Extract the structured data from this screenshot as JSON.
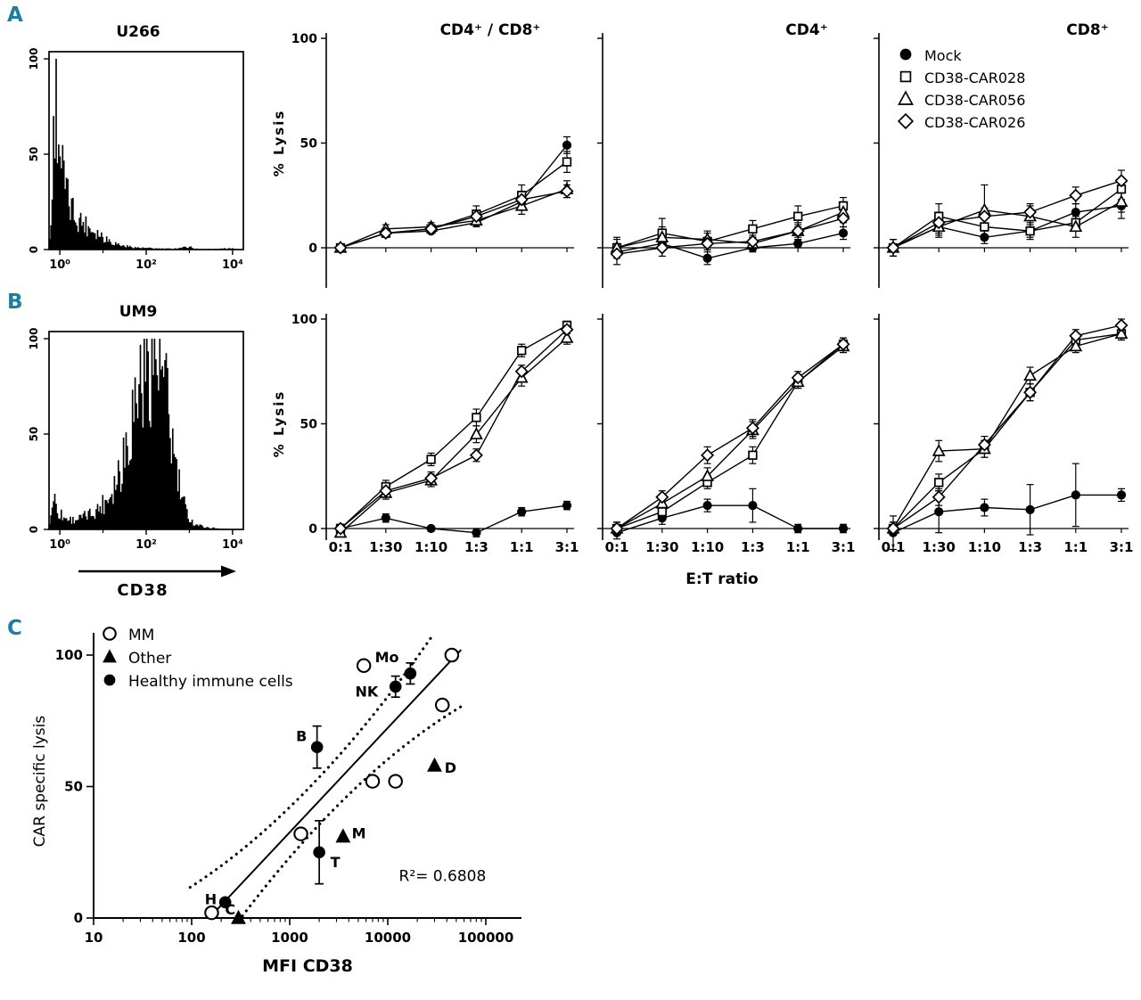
{
  "panels": {
    "a": "A",
    "b": "B",
    "c": "C"
  },
  "labels": {
    "et_ratio": "E:T ratio",
    "cd38": "CD38"
  },
  "legendA": {
    "items": [
      {
        "marker": "circle-filled",
        "label": "Mock"
      },
      {
        "marker": "square-open",
        "label": "CD38-CAR028"
      },
      {
        "marker": "triangle-open",
        "label": "CD38-CAR056"
      },
      {
        "marker": "diamond-open",
        "label": "CD38-CAR026"
      }
    ]
  },
  "legendC": {
    "items": [
      {
        "marker": "circle-open",
        "label": "MM"
      },
      {
        "marker": "triangle-filled",
        "label": "Other"
      },
      {
        "marker": "circle-filled",
        "label": "Healthy immune  cells"
      }
    ]
  },
  "chart_data": [
    {
      "id": "hist-u266",
      "type": "histogram",
      "title": "U266",
      "yticks": [
        0,
        50,
        100
      ],
      "log_range": [
        -0.25,
        4.25
      ],
      "xticks": [
        {
          "log": 0,
          "label": "10⁰"
        },
        {
          "log": 2,
          "label": "10²"
        },
        {
          "log": 4,
          "label": "10⁴"
        }
      ],
      "profile": [
        [
          -0.25,
          0
        ],
        [
          -0.18,
          25
        ],
        [
          -0.1,
          95
        ],
        [
          -0.02,
          60
        ],
        [
          0.08,
          38
        ],
        [
          0.2,
          24
        ],
        [
          0.35,
          18
        ],
        [
          0.5,
          15
        ],
        [
          0.65,
          12
        ],
        [
          0.8,
          10
        ],
        [
          1.0,
          7
        ],
        [
          1.2,
          4
        ],
        [
          1.45,
          2
        ],
        [
          1.8,
          1
        ],
        [
          2.2,
          0.6
        ],
        [
          2.6,
          0.4
        ],
        [
          3.0,
          1.5
        ],
        [
          3.15,
          0.4
        ],
        [
          3.6,
          0.3
        ],
        [
          4.0,
          0.8
        ],
        [
          4.25,
          0
        ]
      ]
    },
    {
      "id": "lysis-a-cd4cd8",
      "type": "line",
      "title": "CD4⁺ / CD8⁺",
      "ylabel": "% Lysis",
      "yticks": [
        0,
        50,
        100
      ],
      "ylim": [
        -15,
        100
      ],
      "show_ytick_labels": true,
      "show_xtick_labels": false,
      "categories": [
        "0:1",
        "1:30",
        "1:10",
        "1:3",
        "1:1",
        "3:1"
      ],
      "series": [
        {
          "name": "Mock",
          "marker": "circle-filled",
          "values": [
            0,
            7,
            8,
            12,
            22,
            49
          ],
          "errors": [
            0,
            0,
            0,
            0,
            0,
            4
          ]
        },
        {
          "name": "CD38-CAR028",
          "marker": "square-open",
          "values": [
            0,
            7,
            9,
            16,
            25,
            41
          ],
          "errors": [
            0,
            2,
            2,
            4,
            5,
            5
          ]
        },
        {
          "name": "CD38-CAR056",
          "marker": "triangle-open",
          "values": [
            0,
            9,
            10,
            13,
            20,
            28
          ],
          "errors": [
            0,
            2,
            2,
            3,
            4,
            4
          ]
        },
        {
          "name": "CD38-CAR026",
          "marker": "diamond-open",
          "values": [
            0,
            7,
            9,
            15,
            23,
            27
          ],
          "errors": [
            0,
            0,
            2,
            3,
            4,
            3
          ]
        }
      ]
    },
    {
      "id": "lysis-a-cd4",
      "type": "line",
      "title": "CD4⁺",
      "ylabel": "",
      "yticks": [
        0,
        50,
        100
      ],
      "ylim": [
        -15,
        100
      ],
      "show_ytick_labels": false,
      "show_xtick_labels": false,
      "categories": [
        "0:1",
        "1:30",
        "1:10",
        "1:3",
        "1:1",
        "3:1"
      ],
      "series": [
        {
          "name": "Mock",
          "marker": "circle-filled",
          "values": [
            -2,
            2,
            -5,
            0,
            2,
            7
          ],
          "errors": [
            0,
            3,
            3,
            2,
            2,
            3
          ]
        },
        {
          "name": "CD38-CAR028",
          "marker": "square-open",
          "values": [
            0,
            7,
            3,
            9,
            15,
            20
          ],
          "errors": [
            5,
            7,
            4,
            4,
            5,
            4
          ]
        },
        {
          "name": "CD38-CAR056",
          "marker": "triangle-open",
          "values": [
            0,
            5,
            4,
            2,
            8,
            17
          ],
          "errors": [
            4,
            5,
            4,
            3,
            4,
            5
          ]
        },
        {
          "name": "CD38-CAR026",
          "marker": "diamond-open",
          "values": [
            -3,
            0,
            2,
            3,
            8,
            14
          ],
          "errors": [
            5,
            4,
            3,
            3,
            3,
            4
          ]
        }
      ]
    },
    {
      "id": "lysis-a-cd8",
      "type": "line",
      "title": "CD8⁺",
      "ylabel": "",
      "yticks": [
        0,
        50,
        100
      ],
      "ylim": [
        -15,
        100
      ],
      "show_ytick_labels": false,
      "show_xtick_labels": false,
      "categories": [
        "0:1",
        "1:30",
        "1:10",
        "1:3",
        "1:1",
        "3:1"
      ],
      "series": [
        {
          "name": "Mock",
          "marker": "circle-filled",
          "values": [
            0,
            10,
            5,
            8,
            17,
            20
          ],
          "errors": [
            0,
            4,
            3,
            3,
            4,
            3
          ]
        },
        {
          "name": "CD38-CAR028",
          "marker": "square-open",
          "values": [
            0,
            15,
            10,
            8,
            12,
            28
          ],
          "errors": [
            4,
            6,
            5,
            4,
            4,
            5
          ]
        },
        {
          "name": "CD38-CAR056",
          "marker": "triangle-open",
          "values": [
            0,
            10,
            18,
            15,
            10,
            22
          ],
          "errors": [
            4,
            5,
            12,
            5,
            5,
            8
          ]
        },
        {
          "name": "CD38-CAR026",
          "marker": "diamond-open",
          "values": [
            0,
            12,
            15,
            17,
            25,
            32
          ],
          "errors": [
            4,
            5,
            4,
            4,
            4,
            5
          ]
        }
      ]
    },
    {
      "id": "hist-um9",
      "type": "histogram",
      "title": "UM9",
      "yticks": [
        0,
        50,
        100
      ],
      "log_range": [
        -0.25,
        4.25
      ],
      "xticks": [
        {
          "log": 0,
          "label": "10⁰"
        },
        {
          "log": 2,
          "label": "10²"
        },
        {
          "log": 4,
          "label": "10⁴"
        }
      ],
      "profile": [
        [
          -0.25,
          0
        ],
        [
          -0.15,
          18
        ],
        [
          -0.05,
          10
        ],
        [
          0.1,
          6
        ],
        [
          0.3,
          5
        ],
        [
          0.5,
          6
        ],
        [
          0.7,
          8
        ],
        [
          0.9,
          11
        ],
        [
          1.1,
          16
        ],
        [
          1.3,
          26
        ],
        [
          1.5,
          42
        ],
        [
          1.7,
          62
        ],
        [
          1.85,
          78
        ],
        [
          2.0,
          92
        ],
        [
          2.1,
          97
        ],
        [
          2.2,
          93
        ],
        [
          2.35,
          82
        ],
        [
          2.5,
          62
        ],
        [
          2.65,
          38
        ],
        [
          2.8,
          18
        ],
        [
          2.95,
          8
        ],
        [
          3.1,
          3
        ],
        [
          3.4,
          1
        ],
        [
          3.8,
          0.4
        ],
        [
          4.25,
          0
        ]
      ]
    },
    {
      "id": "lysis-b-cd4cd8",
      "type": "line",
      "title": "CD4⁺ / CD8⁺",
      "ylabel": "% Lysis",
      "yticks": [
        0,
        50,
        100
      ],
      "ylim": [
        -15,
        100
      ],
      "show_ytick_labels": true,
      "show_xtick_labels": true,
      "categories": [
        "0:1",
        "1:30",
        "1:10",
        "1:3",
        "1:1",
        "3:1"
      ],
      "series": [
        {
          "name": "Mock",
          "marker": "circle-filled",
          "values": [
            0,
            5,
            0,
            -2,
            8,
            11
          ],
          "errors": [
            0,
            2,
            0,
            2,
            2,
            2
          ]
        },
        {
          "name": "CD38-CAR028",
          "marker": "square-open",
          "values": [
            0,
            20,
            33,
            53,
            85,
            97
          ],
          "errors": [
            2,
            3,
            3,
            4,
            3,
            2
          ]
        },
        {
          "name": "CD38-CAR056",
          "marker": "triangle-open",
          "values": [
            -2,
            17,
            23,
            45,
            72,
            91
          ],
          "errors": [
            2,
            3,
            3,
            4,
            4,
            3
          ]
        },
        {
          "name": "CD38-CAR026",
          "marker": "diamond-open",
          "values": [
            0,
            18,
            24,
            35,
            75,
            95
          ],
          "errors": [
            2,
            3,
            3,
            3,
            3,
            2
          ]
        }
      ]
    },
    {
      "id": "lysis-b-cd4",
      "type": "line",
      "title": "CD4⁺",
      "ylabel": "",
      "yticks": [
        0,
        50,
        100
      ],
      "ylim": [
        -15,
        100
      ],
      "show_ytick_labels": false,
      "show_xtick_labels": true,
      "categories": [
        "0:1",
        "1:30",
        "1:10",
        "1:3",
        "1:1",
        "3:1"
      ],
      "series": [
        {
          "name": "Mock",
          "marker": "circle-filled",
          "values": [
            -2,
            5,
            11,
            11,
            0,
            0
          ],
          "errors": [
            3,
            3,
            3,
            8,
            2,
            2
          ]
        },
        {
          "name": "CD38-CAR028",
          "marker": "square-open",
          "values": [
            0,
            8,
            22,
            35,
            70,
            88
          ],
          "errors": [
            3,
            3,
            3,
            4,
            3,
            3
          ]
        },
        {
          "name": "CD38-CAR056",
          "marker": "triangle-open",
          "values": [
            0,
            12,
            25,
            47,
            70,
            87
          ],
          "errors": [
            3,
            3,
            4,
            4,
            3,
            3
          ]
        },
        {
          "name": "CD38-CAR026",
          "marker": "diamond-open",
          "values": [
            0,
            15,
            35,
            48,
            72,
            88
          ],
          "errors": [
            3,
            3,
            4,
            4,
            3,
            3
          ]
        }
      ]
    },
    {
      "id": "lysis-b-cd8",
      "type": "line",
      "title": "CD8⁺",
      "ylabel": "",
      "yticks": [
        0,
        50,
        100
      ],
      "ylim": [
        -15,
        100
      ],
      "show_ytick_labels": false,
      "show_xtick_labels": true,
      "categories": [
        "0:1",
        "1:30",
        "1:10",
        "1:3",
        "1:1",
        "3:1"
      ],
      "series": [
        {
          "name": "Mock",
          "marker": "circle-filled",
          "values": [
            -2,
            8,
            10,
            9,
            16,
            16
          ],
          "errors": [
            8,
            10,
            4,
            12,
            15,
            3
          ]
        },
        {
          "name": "CD38-CAR028",
          "marker": "square-open",
          "values": [
            0,
            22,
            38,
            65,
            90,
            93
          ],
          "errors": [
            3,
            4,
            4,
            4,
            3,
            3
          ]
        },
        {
          "name": "CD38-CAR056",
          "marker": "triangle-open",
          "values": [
            0,
            37,
            38,
            73,
            87,
            93
          ],
          "errors": [
            3,
            5,
            4,
            4,
            3,
            3
          ]
        },
        {
          "name": "CD38-CAR026",
          "marker": "diamond-open",
          "values": [
            0,
            15,
            40,
            65,
            92,
            97
          ],
          "errors": [
            3,
            4,
            4,
            4,
            3,
            3
          ]
        }
      ]
    },
    {
      "id": "scatter-c",
      "type": "scatter",
      "xlabel": "MFI CD38",
      "ylabel": "CAR specific lysis",
      "yticks": [
        0,
        50,
        100
      ],
      "ylim": [
        0,
        110
      ],
      "xlog_range": [
        10,
        100000
      ],
      "xticks": [
        {
          "log": 1,
          "label": "10"
        },
        {
          "log": 2,
          "label": "100"
        },
        {
          "log": 3,
          "label": "1000"
        },
        {
          "log": 4,
          "label": "10000"
        },
        {
          "log": 5,
          "label": "100000"
        }
      ],
      "series": [
        {
          "name": "MM",
          "marker": "circle-open",
          "points": [
            {
              "x": 160,
              "y": 2
            },
            {
              "x": 1300,
              "y": 32
            },
            {
              "x": 7000,
              "y": 52
            },
            {
              "x": 12000,
              "y": 52
            },
            {
              "x": 5700,
              "y": 96
            },
            {
              "x": 45000,
              "y": 100
            },
            {
              "x": 36000,
              "y": 81
            }
          ]
        },
        {
          "name": "Other",
          "marker": "triangle-filled",
          "points": [
            {
              "x": 300,
              "y": 0
            },
            {
              "x": 3500,
              "y": 31
            },
            {
              "x": 30000,
              "y": 58
            }
          ]
        },
        {
          "name": "Healthy immune cells",
          "marker": "circle-filled",
          "points": [
            {
              "x": 220,
              "y": 6
            },
            {
              "x": 1900,
              "y": 65,
              "err": 8
            },
            {
              "x": 2000,
              "y": 25,
              "err": 12
            },
            {
              "x": 12000,
              "y": 88,
              "err": 4
            },
            {
              "x": 17000,
              "y": 93,
              "err": 4
            }
          ]
        }
      ],
      "point_labels": [
        {
          "text": "Mo",
          "x": 13000,
          "y": 99,
          "anchor": "end"
        },
        {
          "text": "NK",
          "x": 8000,
          "y": 86,
          "anchor": "end"
        },
        {
          "text": "B",
          "x": 1500,
          "y": 69,
          "anchor": "end"
        },
        {
          "text": "D",
          "x": 38000,
          "y": 57,
          "anchor": "start"
        },
        {
          "text": "M",
          "x": 4300,
          "y": 32,
          "anchor": "start"
        },
        {
          "text": "T",
          "x": 2600,
          "y": 21,
          "anchor": "start"
        },
        {
          "text": "H",
          "x": 180,
          "y": 7,
          "anchor": "end"
        },
        {
          "text": "C",
          "x": 280,
          "y": 3,
          "anchor": "end"
        }
      ],
      "fit": {
        "x1": 160,
        "y1": 1,
        "x2": 56000,
        "y2": 102,
        "band": [
          9,
          6,
          3.3
        ]
      },
      "annotation": {
        "text": "R²= 0.6808",
        "x": 13000,
        "y": 14
      }
    }
  ]
}
